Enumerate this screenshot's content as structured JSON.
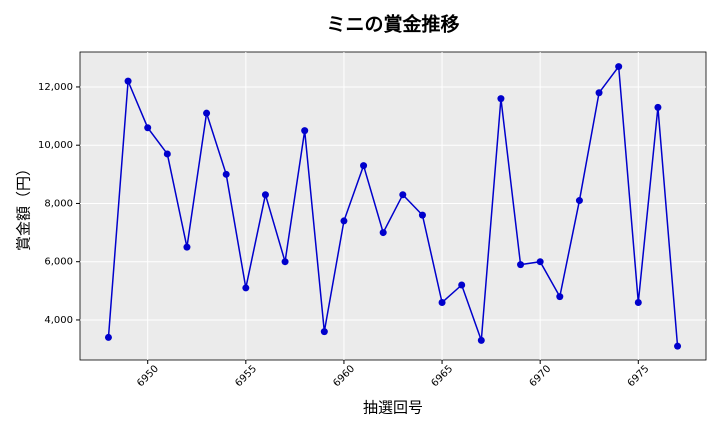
{
  "chart_data": {
    "type": "line",
    "title": "ミニの賞金推移",
    "x_label": "抽選回号",
    "y_label": "賞金額（円）",
    "x": [
      6948,
      6949,
      6950,
      6951,
      6952,
      6953,
      6954,
      6955,
      6956,
      6957,
      6958,
      6959,
      6960,
      6961,
      6962,
      6963,
      6964,
      6965,
      6966,
      6967,
      6968,
      6969,
      6970,
      6971,
      6972,
      6973,
      6974,
      6975,
      6976,
      6977
    ],
    "series": [
      {
        "name": "賞金額",
        "color": "#0000cc",
        "values": [
          3400,
          12200,
          10600,
          9700,
          6500,
          11100,
          9000,
          5100,
          8300,
          6000,
          10500,
          3600,
          7400,
          9300,
          7000,
          8300,
          7600,
          4600,
          5200,
          3300,
          11600,
          5900,
          6000,
          4800,
          8100,
          11800,
          12700,
          4600,
          11300,
          3100
        ]
      }
    ],
    "xlim": [
      6946.55,
      6978.45
    ],
    "xticks": [
      6950,
      6955,
      6960,
      6965,
      6970,
      6975
    ],
    "ylim": [
      2625,
      13200
    ],
    "yticks": [
      {
        "value": 4000,
        "label": "4,000"
      },
      {
        "value": 6000,
        "label": "6,000"
      },
      {
        "value": 8000,
        "label": "8,000"
      },
      {
        "value": 10000,
        "label": "10,000"
      },
      {
        "value": 12000,
        "label": "12,000"
      }
    ],
    "grid": true
  }
}
